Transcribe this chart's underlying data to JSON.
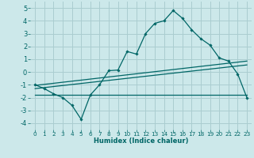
{
  "title": "",
  "xlabel": "Humidex (Indice chaleur)",
  "bg_color": "#cce8ea",
  "grid_color": "#aacdd0",
  "line_color": "#006666",
  "xlim": [
    -0.5,
    23.5
  ],
  "ylim": [
    -4.5,
    5.5
  ],
  "xticks": [
    0,
    1,
    2,
    3,
    4,
    5,
    6,
    7,
    8,
    9,
    10,
    11,
    12,
    13,
    14,
    15,
    16,
    17,
    18,
    19,
    20,
    21,
    22,
    23
  ],
  "yticks": [
    -4,
    -3,
    -2,
    -1,
    0,
    1,
    2,
    3,
    4,
    5
  ],
  "line1_x": [
    0,
    1,
    2,
    3,
    4,
    5,
    6,
    7,
    8,
    9,
    10,
    11,
    12,
    13,
    14,
    15,
    16,
    17,
    18,
    19,
    20,
    21,
    22,
    23
  ],
  "line1_y": [
    -1.0,
    -1.3,
    -1.7,
    -2.0,
    -2.6,
    -3.7,
    -1.8,
    -1.0,
    0.1,
    0.15,
    1.6,
    1.4,
    3.0,
    3.8,
    4.0,
    4.8,
    4.2,
    3.3,
    2.6,
    2.1,
    1.1,
    0.85,
    -0.15,
    -2.0
  ],
  "line2_x": [
    0,
    23
  ],
  "line2_y": [
    -1.8,
    -1.8
  ],
  "line3_x": [
    0,
    23
  ],
  "line3_y": [
    -1.3,
    0.55
  ],
  "line4_x": [
    0,
    23
  ],
  "line4_y": [
    -1.05,
    0.85
  ],
  "xlabel_fontsize": 6,
  "ytick_fontsize": 6,
  "xtick_fontsize": 5.2
}
